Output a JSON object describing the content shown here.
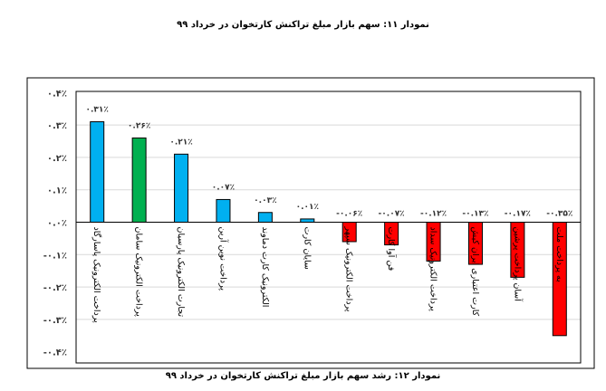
{
  "top_caption": "نمودار ۱۱: سهم بازار مبلغ تراکنش کارتخوان در خرداد ۹۹",
  "bottom_caption": "نمودار ۱۲: رشد سهم بازار مبلغ تراکنش کارتخوان در خرداد ۹۹",
  "chart_data": {
    "type": "bar",
    "title": "",
    "xlabel": "",
    "ylabel": "",
    "ylim": [
      -0.4,
      0.4
    ],
    "y_unit": "%",
    "grid": true,
    "legend": "none",
    "y_tick_labels": [
      "۰.۴٪",
      "۰.۳٪",
      "۰.۲٪",
      "۰.۱٪",
      "۰.۰٪",
      "-۰.۱٪",
      "-۰.۲٪",
      "-۰.۳٪",
      "-۰.۴٪"
    ],
    "y_ticks": [
      0.4,
      0.3,
      0.2,
      0.1,
      0,
      -0.1,
      -0.2,
      -0.3,
      -0.4
    ],
    "categories": [
      "پرداخت الکترونیک پاسارگاد",
      "پرداخت الکترونیک سامان",
      "تجارت الکترونیک پارسیان",
      "پرداخت نوین آرین",
      "الکترونیک کارت دماوند",
      "سایان کارت",
      "پرداخت الکترونیک سپهر",
      "فن آوا کارت",
      "پرداخت الکترونیک سداد",
      "کارت اعتباری ایران کیش",
      "آسان پرداخت پرشین",
      "به پرداخت ملت"
    ],
    "values": [
      0.31,
      0.26,
      0.21,
      0.07,
      0.03,
      0.01,
      -0.06,
      -0.07,
      -0.12,
      -0.13,
      -0.17,
      -0.35
    ],
    "data_labels": [
      "۰.۳۱٪",
      "۰.۲۶٪",
      "۰.۲۱٪",
      "۰.۰۷٪",
      "۰.۰۳٪",
      "۰.۰۱٪",
      "-۰.۰۶٪",
      "-۰.۰۷٪",
      "-۰.۱۲٪",
      "-۰.۱۳٪",
      "-۰.۱۷٪",
      "-۰.۳۵٪"
    ],
    "bar_colors": [
      "#00b0f0",
      "#00b050",
      "#00b0f0",
      "#00b0f0",
      "#00b0f0",
      "#00b0f0",
      "#ff0000",
      "#ff0000",
      "#ff0000",
      "#ff0000",
      "#ff0000",
      "#ff0000"
    ]
  }
}
